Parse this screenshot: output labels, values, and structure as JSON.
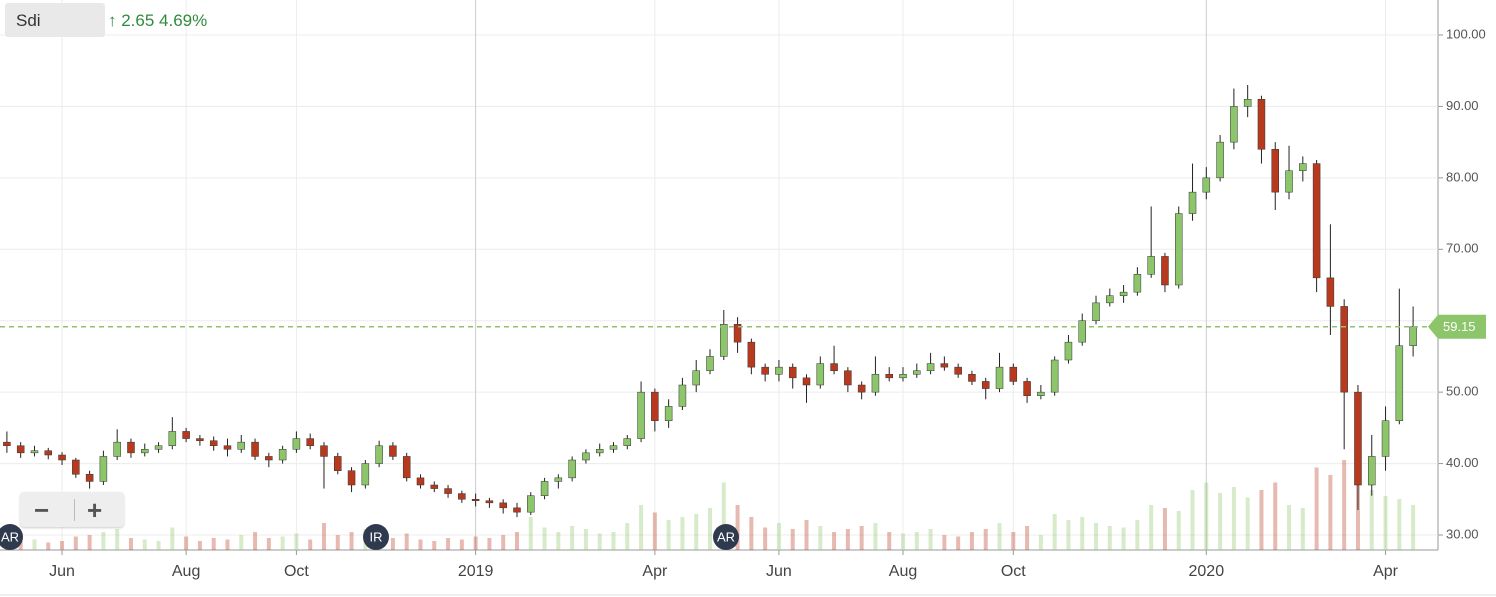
{
  "header": {
    "symbol": "Sdi",
    "change": "↑ 2.65 4.69%"
  },
  "markers": [
    "AR",
    "IR",
    "AR"
  ],
  "chart_data": {
    "type": "candlestick",
    "categories": [
      null,
      null,
      null,
      null,
      "Jun",
      null,
      null,
      null,
      null,
      null,
      null,
      null,
      null,
      "Aug",
      null,
      null,
      null,
      null,
      null,
      null,
      null,
      "Oct",
      null,
      null,
      null,
      null,
      null,
      null,
      null,
      null,
      null,
      null,
      null,
      null,
      "2019",
      null,
      null,
      null,
      null,
      null,
      null,
      null,
      null,
      null,
      null,
      null,
      null,
      "Apr",
      null,
      null,
      null,
      null,
      null,
      null,
      null,
      null,
      "Jun",
      null,
      null,
      null,
      null,
      null,
      null,
      null,
      null,
      "Aug",
      null,
      null,
      null,
      null,
      null,
      null,
      null,
      "Oct",
      null,
      null,
      null,
      null,
      null,
      null,
      null,
      null,
      null,
      null,
      null,
      null,
      null,
      "2020",
      null,
      null,
      null,
      null,
      null,
      null,
      null,
      null,
      null,
      null,
      null,
      null,
      "Apr",
      null,
      null
    ],
    "ohlc": [
      [
        43,
        44.5,
        41.5,
        42.5
      ],
      [
        42.5,
        43,
        40.8,
        41.5
      ],
      [
        41.5,
        42.5,
        41,
        41.8
      ],
      [
        41.8,
        42.2,
        40.6,
        41.2
      ],
      [
        41.2,
        41.6,
        39.8,
        40.5
      ],
      [
        40.5,
        40.8,
        38,
        38.5
      ],
      [
        38.5,
        39,
        36.5,
        37.5
      ],
      [
        37.5,
        41.8,
        37,
        41
      ],
      [
        41,
        44.8,
        40.5,
        43
      ],
      [
        43,
        43.5,
        40.8,
        41.5
      ],
      [
        41.5,
        42.8,
        41,
        42
      ],
      [
        42,
        43,
        41.5,
        42.5
      ],
      [
        42.5,
        46.5,
        42,
        44.5
      ],
      [
        44.5,
        45,
        43,
        43.5
      ],
      [
        43.5,
        44,
        42.5,
        43.2
      ],
      [
        43.2,
        43.8,
        41.8,
        42.5
      ],
      [
        42.5,
        43.5,
        41,
        42
      ],
      [
        42,
        44,
        41.5,
        43
      ],
      [
        43,
        43.5,
        40.5,
        41
      ],
      [
        41,
        41.5,
        39.5,
        40.5
      ],
      [
        40.5,
        42.5,
        40,
        42
      ],
      [
        42,
        44.5,
        41.5,
        43.5
      ],
      [
        43.5,
        44.2,
        42,
        42.5
      ],
      [
        42.5,
        43,
        36.5,
        41
      ],
      [
        41,
        41.5,
        38.5,
        39
      ],
      [
        39,
        39.5,
        36,
        37
      ],
      [
        37,
        40.5,
        36.5,
        40
      ],
      [
        40,
        43.2,
        39.5,
        42.5
      ],
      [
        42.5,
        43,
        40.5,
        41
      ],
      [
        41,
        41.5,
        37.5,
        38
      ],
      [
        38,
        38.5,
        36.5,
        37
      ],
      [
        37,
        37.5,
        36,
        36.5
      ],
      [
        36.5,
        37,
        35.2,
        35.8
      ],
      [
        35.8,
        36.2,
        34.5,
        35
      ],
      [
        35,
        35.8,
        34,
        34.8
      ],
      [
        34.8,
        35.2,
        33.8,
        34.5
      ],
      [
        34.5,
        35,
        33,
        33.8
      ],
      [
        33.8,
        34.5,
        32.5,
        33.2
      ],
      [
        33.2,
        36,
        32.8,
        35.5
      ],
      [
        35.5,
        38,
        35,
        37.5
      ],
      [
        37.5,
        38.5,
        36.5,
        38
      ],
      [
        38,
        41,
        37.5,
        40.5
      ],
      [
        40.5,
        42,
        40,
        41.5
      ],
      [
        41.5,
        42.8,
        41,
        42
      ],
      [
        42,
        43,
        41.5,
        42.5
      ],
      [
        42.5,
        44,
        42,
        43.5
      ],
      [
        43.5,
        51.5,
        43,
        50
      ],
      [
        50,
        50.5,
        44.5,
        46
      ],
      [
        46,
        49,
        45,
        48
      ],
      [
        48,
        52,
        47.5,
        51
      ],
      [
        51,
        54.5,
        50,
        53
      ],
      [
        53,
        56,
        52.5,
        55
      ],
      [
        55,
        61.5,
        54.5,
        59.5
      ],
      [
        59.5,
        60.5,
        55.5,
        57
      ],
      [
        57,
        57.5,
        52.5,
        53.5
      ],
      [
        53.5,
        54,
        51.5,
        52.5
      ],
      [
        52.5,
        54.5,
        51.5,
        53.5
      ],
      [
        53.5,
        54,
        50.5,
        52
      ],
      [
        52,
        52.5,
        48.5,
        51
      ],
      [
        51,
        55,
        50.5,
        54
      ],
      [
        54,
        56.5,
        52.5,
        53
      ],
      [
        53,
        53.5,
        50,
        51
      ],
      [
        51,
        51.5,
        49,
        50
      ],
      [
        50,
        55,
        49.5,
        52.5
      ],
      [
        52.5,
        53.5,
        51.5,
        52
      ],
      [
        52,
        53.5,
        51.5,
        52.5
      ],
      [
        52.5,
        54,
        52,
        53
      ],
      [
        53,
        55.5,
        52.5,
        54
      ],
      [
        54,
        55,
        53,
        53.5
      ],
      [
        53.5,
        54,
        52,
        52.5
      ],
      [
        52.5,
        53,
        51,
        51.5
      ],
      [
        51.5,
        52,
        49,
        50.5
      ],
      [
        50.5,
        55.5,
        50,
        53.5
      ],
      [
        53.5,
        54,
        51,
        51.5
      ],
      [
        51.5,
        52,
        48.5,
        49.5
      ],
      [
        49.5,
        51,
        49,
        50
      ],
      [
        50,
        55,
        49.5,
        54.5
      ],
      [
        54.5,
        58,
        54,
        57
      ],
      [
        57,
        61,
        56.5,
        60
      ],
      [
        60,
        63.5,
        59.5,
        62.5
      ],
      [
        62.5,
        64.5,
        62,
        63.5
      ],
      [
        63.5,
        65,
        62.5,
        64
      ],
      [
        64,
        67.5,
        63.5,
        66.5
      ],
      [
        66.5,
        76,
        66,
        69
      ],
      [
        69,
        69.5,
        64,
        65
      ],
      [
        65,
        76,
        64.5,
        75
      ],
      [
        75,
        82,
        74,
        78
      ],
      [
        78,
        81.5,
        77,
        80
      ],
      [
        80,
        86,
        79.5,
        85
      ],
      [
        85,
        92.5,
        84,
        90
      ],
      [
        90,
        93,
        88.5,
        91
      ],
      [
        91,
        91.5,
        82,
        84
      ],
      [
        84,
        85,
        75.5,
        78
      ],
      [
        78,
        84.5,
        77,
        81
      ],
      [
        81,
        83,
        79.5,
        82
      ],
      [
        82,
        82.5,
        64,
        66
      ],
      [
        66,
        73.5,
        58,
        62
      ],
      [
        62,
        63,
        42,
        50
      ],
      [
        50,
        51,
        33.5,
        37
      ],
      [
        37,
        44,
        35.5,
        41
      ],
      [
        41,
        48,
        39,
        46
      ],
      [
        46,
        64.5,
        45.5,
        56.5
      ],
      [
        56.5,
        62,
        55,
        59.15
      ]
    ],
    "volume": [
      8,
      6,
      7,
      5,
      6,
      9,
      10,
      12,
      14,
      8,
      7,
      6,
      15,
      9,
      6,
      8,
      7,
      10,
      12,
      8,
      9,
      11,
      7,
      18,
      10,
      12,
      14,
      13,
      8,
      11,
      7,
      6,
      8,
      7,
      9,
      8,
      10,
      12,
      22,
      15,
      12,
      16,
      14,
      11,
      12,
      18,
      30,
      25,
      20,
      22,
      24,
      28,
      45,
      30,
      22,
      15,
      18,
      14,
      20,
      16,
      12,
      14,
      16,
      18,
      12,
      11,
      12,
      14,
      10,
      9,
      12,
      14,
      18,
      12,
      16,
      10,
      24,
      20,
      22,
      18,
      16,
      15,
      20,
      30,
      28,
      26,
      40,
      45,
      38,
      42,
      35,
      40,
      45,
      30,
      28,
      55,
      50,
      60,
      48,
      40,
      36,
      34,
      30
    ],
    "vlim": [
      0,
      100
    ],
    "up_color": "#8cc56a",
    "down_color": "#b83a1e",
    "last": 59.15,
    "last_color": "#8cc56a",
    "ylim": [
      27.9,
      104.9
    ],
    "yticks": [
      {
        "value": 30,
        "label": "30.00"
      },
      {
        "value": 40,
        "label": "40.00"
      },
      {
        "value": 50,
        "label": "50.00"
      },
      {
        "value": 60,
        "label": "60.00"
      },
      {
        "value": 70,
        "label": "70.00"
      },
      {
        "value": 80,
        "label": "80.00"
      },
      {
        "value": 90,
        "label": "90.00"
      },
      {
        "value": 100,
        "label": "100.00"
      }
    ],
    "grid": true
  }
}
